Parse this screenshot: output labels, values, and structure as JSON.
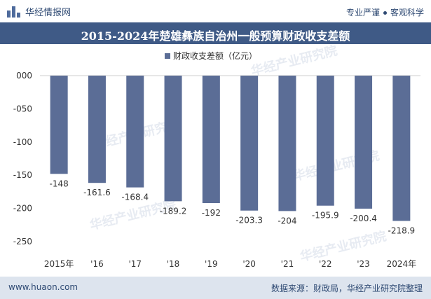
{
  "header": {
    "brand": "华经情报网",
    "tagline_left": "专业严谨",
    "tagline_right": "客观科学"
  },
  "footer": {
    "website": "www.huaon.com",
    "source": "数据来源：财政局，华经产业研究院整理"
  },
  "chart_data": {
    "type": "bar",
    "title": "2015-2024年楚雄彝族自治州一般预算财政收支差额",
    "categories": [
      "2015年",
      "'16",
      "'17",
      "'18",
      "'19",
      "'20",
      "'21",
      "'22",
      "'23",
      "2024年"
    ],
    "series": [
      {
        "name": "财政收支差额（亿元）",
        "values": [
          -148,
          -161.6,
          -168.4,
          -189.2,
          -192,
          -203.3,
          -204,
          -195.9,
          -200.4,
          -218.9
        ]
      }
    ],
    "data_labels": [
      "-148",
      "-161.6",
      "-168.4",
      "-189.2",
      "-192",
      "-203.3",
      "-204",
      "-195.9",
      "-200.4",
      "-218.9"
    ],
    "yticks": [
      0,
      -50,
      -100,
      -150,
      -200,
      -250
    ],
    "ytick_labels": [
      "000",
      "-050",
      "-100",
      "-150",
      "-200",
      "-250"
    ],
    "ylim": [
      -250,
      0
    ],
    "grid": false,
    "legend_position": "top-center",
    "bar_color": "#5b6d96",
    "watermark": "华经产业研究院"
  }
}
